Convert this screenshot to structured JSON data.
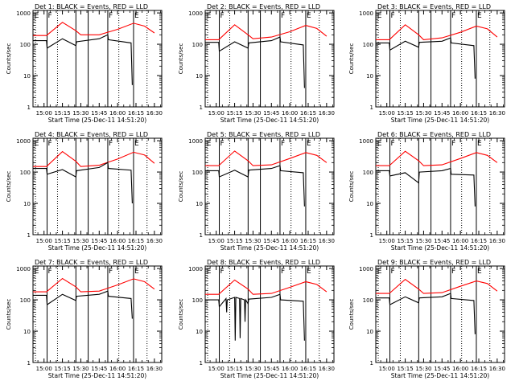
{
  "chart_data": {
    "type": "line",
    "x_tick_labels": [
      "15:00",
      "15:15",
      "15:30",
      "15:45",
      "16:00",
      "16:15",
      "16:30"
    ],
    "x_ticks_minutes": [
      0,
      15,
      30,
      45,
      60,
      75,
      90
    ],
    "xlim_minutes": [
      -9,
      96
    ],
    "y_tick_labels": [
      "1",
      "10",
      "100",
      "1000"
    ],
    "ylim": [
      1,
      1200
    ],
    "y_scale": "log",
    "ylabel": "Counts/sec",
    "xlabel": "Start Time (25-Dec-11 14:51:20)",
    "series_colors": {
      "events": "#000000",
      "lld": "#ff0000"
    },
    "markers": [
      {
        "label": "E",
        "minutes": -8.5
      },
      {
        "label": "F",
        "minutes": 2.5
      },
      {
        "label": "F",
        "minutes": 52
      },
      {
        "label": "E",
        "minutes": 73
      }
    ],
    "vlines_solid_minutes": [
      2.5,
      26,
      36,
      52,
      73
    ],
    "vlines_dotted_minutes": [
      -7,
      11,
      61,
      84
    ],
    "panels": [
      {
        "title": "Det 1: BLACK = Events, RED = LLD",
        "lld": [
          [
            -9,
            190
          ],
          [
            2,
            190
          ],
          [
            15,
            500
          ],
          [
            26,
            270
          ],
          [
            30,
            200
          ],
          [
            45,
            200
          ],
          [
            60,
            300
          ],
          [
            73,
            470
          ],
          [
            82,
            380
          ],
          [
            90,
            230
          ]
        ],
        "events": [
          [
            -9,
            130
          ],
          [
            2,
            130
          ],
          [
            2.5,
            75
          ],
          [
            15,
            150
          ],
          [
            26,
            90
          ],
          [
            26.5,
            120
          ],
          [
            45,
            150
          ],
          [
            52,
            200
          ],
          [
            52.5,
            140
          ],
          [
            71,
            110
          ],
          [
            72,
            5
          ]
        ]
      },
      {
        "title": "Det 2: BLACK = Events, RED = LLD",
        "lld": [
          [
            -9,
            140
          ],
          [
            2,
            140
          ],
          [
            15,
            420
          ],
          [
            26,
            200
          ],
          [
            30,
            150
          ],
          [
            45,
            170
          ],
          [
            60,
            250
          ],
          [
            73,
            400
          ],
          [
            82,
            320
          ],
          [
            90,
            180
          ]
        ],
        "events": [
          [
            -9,
            115
          ],
          [
            2,
            115
          ],
          [
            2.5,
            60
          ],
          [
            15,
            120
          ],
          [
            26,
            75
          ],
          [
            26.5,
            110
          ],
          [
            45,
            130
          ],
          [
            52,
            170
          ],
          [
            52.5,
            120
          ],
          [
            71,
            95
          ],
          [
            72,
            4
          ]
        ]
      },
      {
        "title": "Det 3: BLACK = Events, RED = LLD",
        "lld": [
          [
            -9,
            140
          ],
          [
            2,
            140
          ],
          [
            15,
            420
          ],
          [
            26,
            200
          ],
          [
            30,
            140
          ],
          [
            45,
            160
          ],
          [
            60,
            240
          ],
          [
            73,
            380
          ],
          [
            82,
            310
          ],
          [
            90,
            170
          ]
        ],
        "events": [
          [
            -9,
            110
          ],
          [
            2,
            110
          ],
          [
            2.5,
            65
          ],
          [
            15,
            125
          ],
          [
            26,
            80
          ],
          [
            26.5,
            115
          ],
          [
            45,
            125
          ],
          [
            52,
            160
          ],
          [
            52.5,
            110
          ],
          [
            71,
            90
          ],
          [
            72,
            8
          ]
        ]
      },
      {
        "title": "Det 4: BLACK = Events, RED = LLD",
        "lld": [
          [
            -9,
            150
          ],
          [
            2,
            150
          ],
          [
            15,
            450
          ],
          [
            26,
            220
          ],
          [
            30,
            150
          ],
          [
            45,
            165
          ],
          [
            60,
            260
          ],
          [
            73,
            430
          ],
          [
            82,
            350
          ],
          [
            90,
            190
          ]
        ],
        "events": [
          [
            -9,
            130
          ],
          [
            2,
            130
          ],
          [
            2.5,
            85
          ],
          [
            15,
            120
          ],
          [
            26,
            70
          ],
          [
            26.5,
            110
          ],
          [
            45,
            140
          ],
          [
            52,
            200
          ],
          [
            52.5,
            130
          ],
          [
            71,
            115
          ],
          [
            72,
            10
          ]
        ]
      },
      {
        "title": "Det 5: BLACK = Events, RED = LLD",
        "lld": [
          [
            -9,
            160
          ],
          [
            2,
            160
          ],
          [
            15,
            470
          ],
          [
            26,
            230
          ],
          [
            30,
            160
          ],
          [
            45,
            170
          ],
          [
            60,
            270
          ],
          [
            73,
            420
          ],
          [
            82,
            340
          ],
          [
            90,
            200
          ]
        ],
        "events": [
          [
            -9,
            110
          ],
          [
            2,
            110
          ],
          [
            2.5,
            70
          ],
          [
            15,
            115
          ],
          [
            26,
            70
          ],
          [
            26.5,
            115
          ],
          [
            45,
            130
          ],
          [
            52,
            160
          ],
          [
            52.5,
            110
          ],
          [
            71,
            95
          ],
          [
            72,
            8
          ]
        ]
      },
      {
        "title": "Det 6: BLACK = Events, RED = LLD",
        "lld": [
          [
            -9,
            160
          ],
          [
            2,
            160
          ],
          [
            15,
            460
          ],
          [
            26,
            230
          ],
          [
            30,
            160
          ],
          [
            45,
            170
          ],
          [
            60,
            270
          ],
          [
            73,
            420
          ],
          [
            82,
            340
          ],
          [
            90,
            200
          ]
        ],
        "events": [
          [
            -9,
            110
          ],
          [
            2,
            110
          ],
          [
            2.5,
            75
          ],
          [
            15,
            95
          ],
          [
            26,
            45
          ],
          [
            26.5,
            100
          ],
          [
            45,
            110
          ],
          [
            52,
            130
          ],
          [
            52.5,
            85
          ],
          [
            71,
            80
          ],
          [
            72,
            8
          ]
        ]
      },
      {
        "title": "Det 7: BLACK = Events, RED = LLD",
        "lld": [
          [
            -9,
            180
          ],
          [
            2,
            180
          ],
          [
            15,
            480
          ],
          [
            26,
            260
          ],
          [
            30,
            180
          ],
          [
            45,
            190
          ],
          [
            60,
            300
          ],
          [
            73,
            470
          ],
          [
            82,
            380
          ],
          [
            90,
            220
          ]
        ],
        "events": [
          [
            -9,
            140
          ],
          [
            2,
            140
          ],
          [
            2.5,
            70
          ],
          [
            15,
            150
          ],
          [
            26,
            95
          ],
          [
            26.5,
            130
          ],
          [
            45,
            150
          ],
          [
            52,
            190
          ],
          [
            52.5,
            130
          ],
          [
            71,
            110
          ],
          [
            72,
            25
          ]
        ]
      },
      {
        "title": "Det 8: BLACK = Events, RED = LLD",
        "lld": [
          [
            -9,
            150
          ],
          [
            2,
            150
          ],
          [
            15,
            430
          ],
          [
            26,
            220
          ],
          [
            30,
            150
          ],
          [
            45,
            160
          ],
          [
            60,
            250
          ],
          [
            73,
            380
          ],
          [
            82,
            310
          ],
          [
            90,
            180
          ]
        ],
        "events": [
          [
            -9,
            100
          ],
          [
            2,
            100
          ],
          [
            2.5,
            60
          ],
          [
            8,
            110
          ],
          [
            8.5,
            40
          ],
          [
            9,
            100
          ],
          [
            15,
            120
          ],
          [
            15.5,
            5
          ],
          [
            16,
            120
          ],
          [
            19,
            110
          ],
          [
            19.5,
            6
          ],
          [
            20,
            110
          ],
          [
            23,
            100
          ],
          [
            23.5,
            20
          ],
          [
            24,
            100
          ],
          [
            26,
            75
          ],
          [
            26.5,
            105
          ],
          [
            45,
            120
          ],
          [
            52,
            150
          ],
          [
            52.5,
            100
          ],
          [
            71,
            90
          ],
          [
            72,
            5
          ]
        ]
      },
      {
        "title": "Det 9: BLACK = Events, RED = LLD",
        "lld": [
          [
            -9,
            160
          ],
          [
            2,
            160
          ],
          [
            15,
            450
          ],
          [
            26,
            220
          ],
          [
            30,
            160
          ],
          [
            45,
            170
          ],
          [
            60,
            270
          ],
          [
            73,
            400
          ],
          [
            82,
            330
          ],
          [
            90,
            190
          ]
        ],
        "events": [
          [
            -9,
            115
          ],
          [
            2,
            115
          ],
          [
            2.5,
            70
          ],
          [
            15,
            125
          ],
          [
            26,
            80
          ],
          [
            26.5,
            115
          ],
          [
            45,
            125
          ],
          [
            52,
            160
          ],
          [
            52.5,
            110
          ],
          [
            71,
            95
          ],
          [
            72,
            8
          ]
        ]
      }
    ]
  }
}
